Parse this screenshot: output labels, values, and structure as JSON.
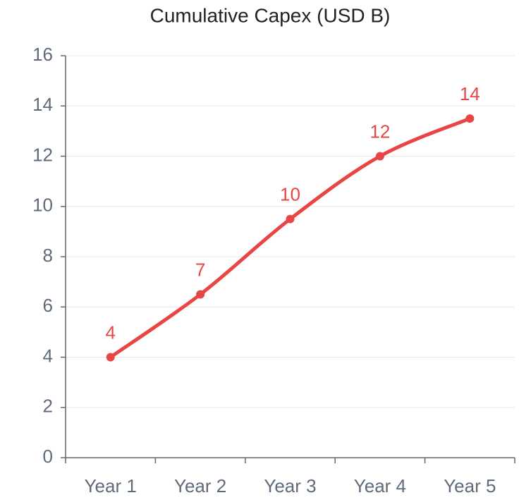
{
  "chart_data": {
    "type": "line",
    "title": "Cumulative Capex (USD B)",
    "categories": [
      "Year 1",
      "Year 2",
      "Year 3",
      "Year 4",
      "Year 5"
    ],
    "series": [
      {
        "name": "Cumulative Capex",
        "color": "#e84545",
        "values": [
          4,
          6.5,
          9.5,
          12,
          13.5
        ],
        "value_labels": [
          "4",
          "7",
          "10",
          "12",
          "14"
        ]
      }
    ],
    "ylim": [
      0,
      16
    ],
    "yticks": [
      0,
      2,
      4,
      6,
      8,
      10,
      12,
      14,
      16
    ],
    "grid": true,
    "legend": false
  }
}
